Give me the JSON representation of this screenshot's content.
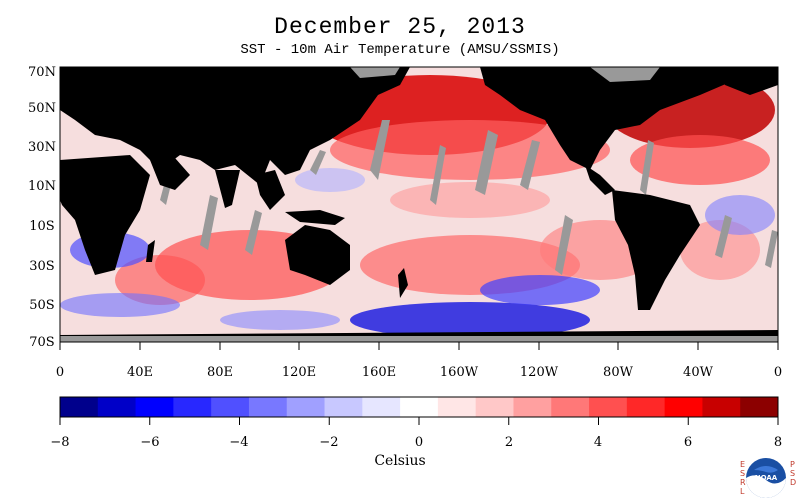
{
  "header": {
    "title": "December 25, 2013",
    "subtitle": "SST - 10m Air Temperature (AMSU/SSMIS)"
  },
  "map": {
    "lat_labels": [
      "70N",
      "50N",
      "30N",
      "10N",
      "10S",
      "30S",
      "50S",
      "70S"
    ],
    "lon_labels": [
      "0",
      "40E",
      "80E",
      "120E",
      "160E",
      "160W",
      "120W",
      "80W",
      "40W",
      "0"
    ],
    "colors": {
      "land": "#000000",
      "missing": "#999999",
      "ocean_background": "#f2d8d8"
    }
  },
  "colorbar": {
    "ticks": [
      "−8",
      "−6",
      "−4",
      "−2",
      "0",
      "2",
      "4",
      "6",
      "8"
    ],
    "label": "Celsius",
    "colors": [
      "#00008c",
      "#0000c8",
      "#0000ff",
      "#2828ff",
      "#5050ff",
      "#7878ff",
      "#a0a0ff",
      "#c8c8ff",
      "#e6e6ff",
      "#ffffff",
      "#ffe6e6",
      "#ffc8c8",
      "#ffa0a0",
      "#ff7878",
      "#ff5050",
      "#ff2828",
      "#ff0000",
      "#c80000",
      "#8c0000"
    ]
  },
  "logo": {
    "name": "NOAA",
    "letters_left": [
      "E",
      "S",
      "R",
      "L"
    ],
    "letters_right": [
      "P",
      "S",
      "D"
    ]
  }
}
